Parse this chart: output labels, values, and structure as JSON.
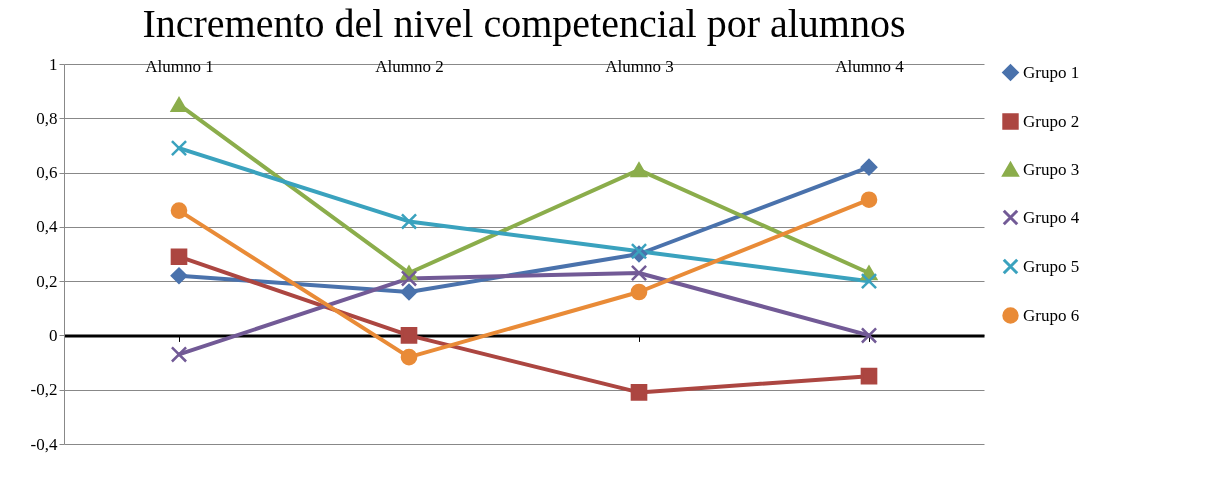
{
  "chart_data": {
    "type": "line",
    "title": "Incremento del nivel competencial por alumnos",
    "categories": [
      "Alumno 1",
      "Alumno 2",
      "Alumno 3",
      "Alumno 4"
    ],
    "series": [
      {
        "name": "Grupo 1",
        "color": "#4a72ac",
        "marker": "diamond",
        "values": [
          0.22,
          0.16,
          0.3,
          0.62
        ]
      },
      {
        "name": "Grupo 2",
        "color": "#ac4641",
        "marker": "square",
        "values": [
          0.29,
          0,
          -0.21,
          -0.15
        ]
      },
      {
        "name": "Grupo 3",
        "color": "#8bad4b",
        "marker": "triangle",
        "values": [
          0.85,
          0.23,
          0.61,
          0.23
        ]
      },
      {
        "name": "Grupo 4",
        "color": "#725a96",
        "marker": "cross",
        "values": [
          -0.07,
          0.21,
          0.23,
          0
        ]
      },
      {
        "name": "Grupo 5",
        "color": "#3aa2be",
        "marker": "cross",
        "values": [
          0.69,
          0.42,
          0.31,
          0.2
        ]
      },
      {
        "name": "Grupo 6",
        "color": "#e98b37",
        "marker": "circle",
        "values": [
          0.46,
          -0.08,
          0.16,
          0.5
        ]
      }
    ],
    "ylim": [
      -0.4,
      1
    ],
    "yticks": [
      {
        "value": -0.4,
        "label": "-0,4"
      },
      {
        "value": -0.2,
        "label": "-0,2"
      },
      0,
      {
        "value": 0.2,
        "label": "0,2"
      },
      {
        "value": 0.4,
        "label": "0,4"
      },
      {
        "value": 0.6,
        "label": "0,6"
      },
      {
        "value": 0.8,
        "label": "0,8"
      },
      1
    ],
    "grid": "y",
    "legend": "right"
  }
}
